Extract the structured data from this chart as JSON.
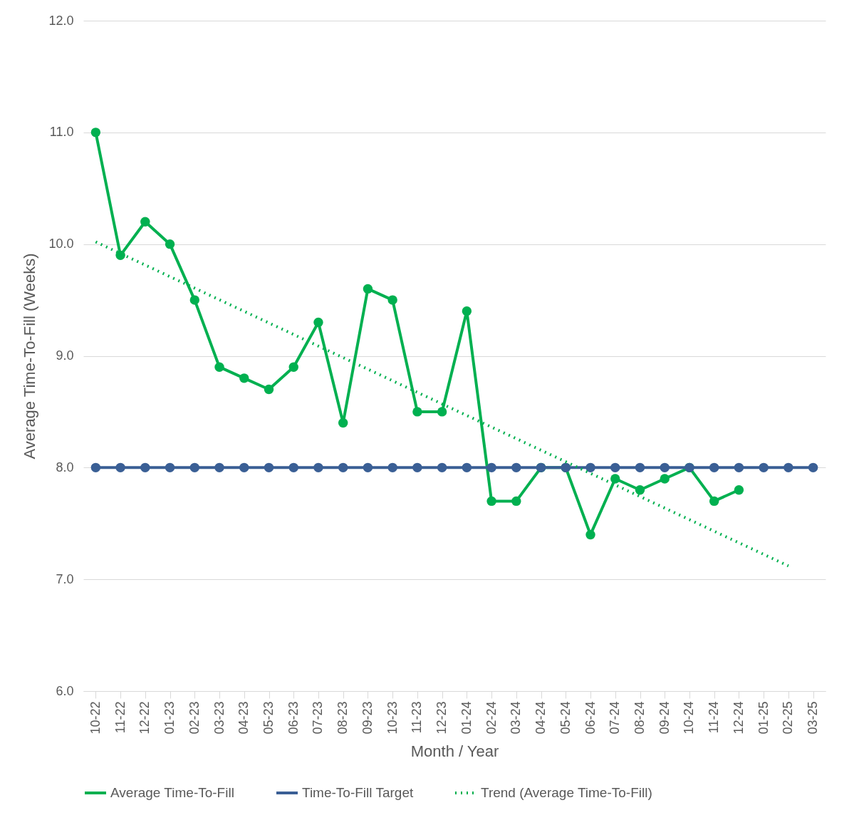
{
  "chart_data": {
    "type": "line",
    "xlabel": "Month / Year",
    "ylabel": "Average Time-To-Fill (Weeks)",
    "categories": [
      "10-22",
      "11-22",
      "12-22",
      "01-23",
      "02-23",
      "03-23",
      "04-23",
      "05-23",
      "06-23",
      "07-23",
      "08-23",
      "09-23",
      "10-23",
      "11-23",
      "12-23",
      "01-24",
      "02-24",
      "03-24",
      "04-24",
      "05-24",
      "06-24",
      "07-24",
      "08-24",
      "09-24",
      "10-24",
      "11-24",
      "12-24",
      "01-25",
      "02-25",
      "03-25"
    ],
    "series": [
      {
        "name": "Average Time-To-Fill",
        "color": "#00b050",
        "marker": "circle",
        "line_style": "solid",
        "values": [
          11.0,
          9.9,
          10.2,
          10.0,
          9.5,
          8.9,
          8.8,
          8.7,
          8.9,
          9.3,
          8.4,
          9.6,
          9.5,
          8.5,
          8.5,
          9.4,
          7.7,
          7.7,
          8.0,
          8.0,
          7.4,
          7.9,
          7.8,
          7.9,
          8.0,
          7.7,
          7.8,
          null,
          null,
          null
        ]
      },
      {
        "name": "Time-To-Fill Target",
        "color": "#3a5f95",
        "marker": "circle",
        "line_style": "solid",
        "values": [
          8,
          8,
          8,
          8,
          8,
          8,
          8,
          8,
          8,
          8,
          8,
          8,
          8,
          8,
          8,
          8,
          8,
          8,
          8,
          8,
          8,
          8,
          8,
          8,
          8,
          8,
          8,
          8,
          8,
          8
        ]
      },
      {
        "name": "Trend (Average Time-To-Fill)",
        "type": "line",
        "color": "#00b050",
        "marker": "none",
        "line_style": "dotted",
        "x": [
          "10-22",
          "02-25"
        ],
        "values": [
          10.02,
          7.12
        ]
      }
    ],
    "ylim": [
      6,
      12
    ],
    "yticks": [
      {
        "value": 6,
        "label": "6.0"
      },
      {
        "value": 7,
        "label": "7.0"
      },
      {
        "value": 8,
        "label": "8.0"
      },
      {
        "value": 9,
        "label": "9.0"
      },
      {
        "value": 10,
        "label": "10.0"
      },
      {
        "value": 11,
        "label": "11.0"
      },
      {
        "value": 12,
        "label": "12.0"
      }
    ],
    "grid": "y",
    "legend": "bottom"
  }
}
